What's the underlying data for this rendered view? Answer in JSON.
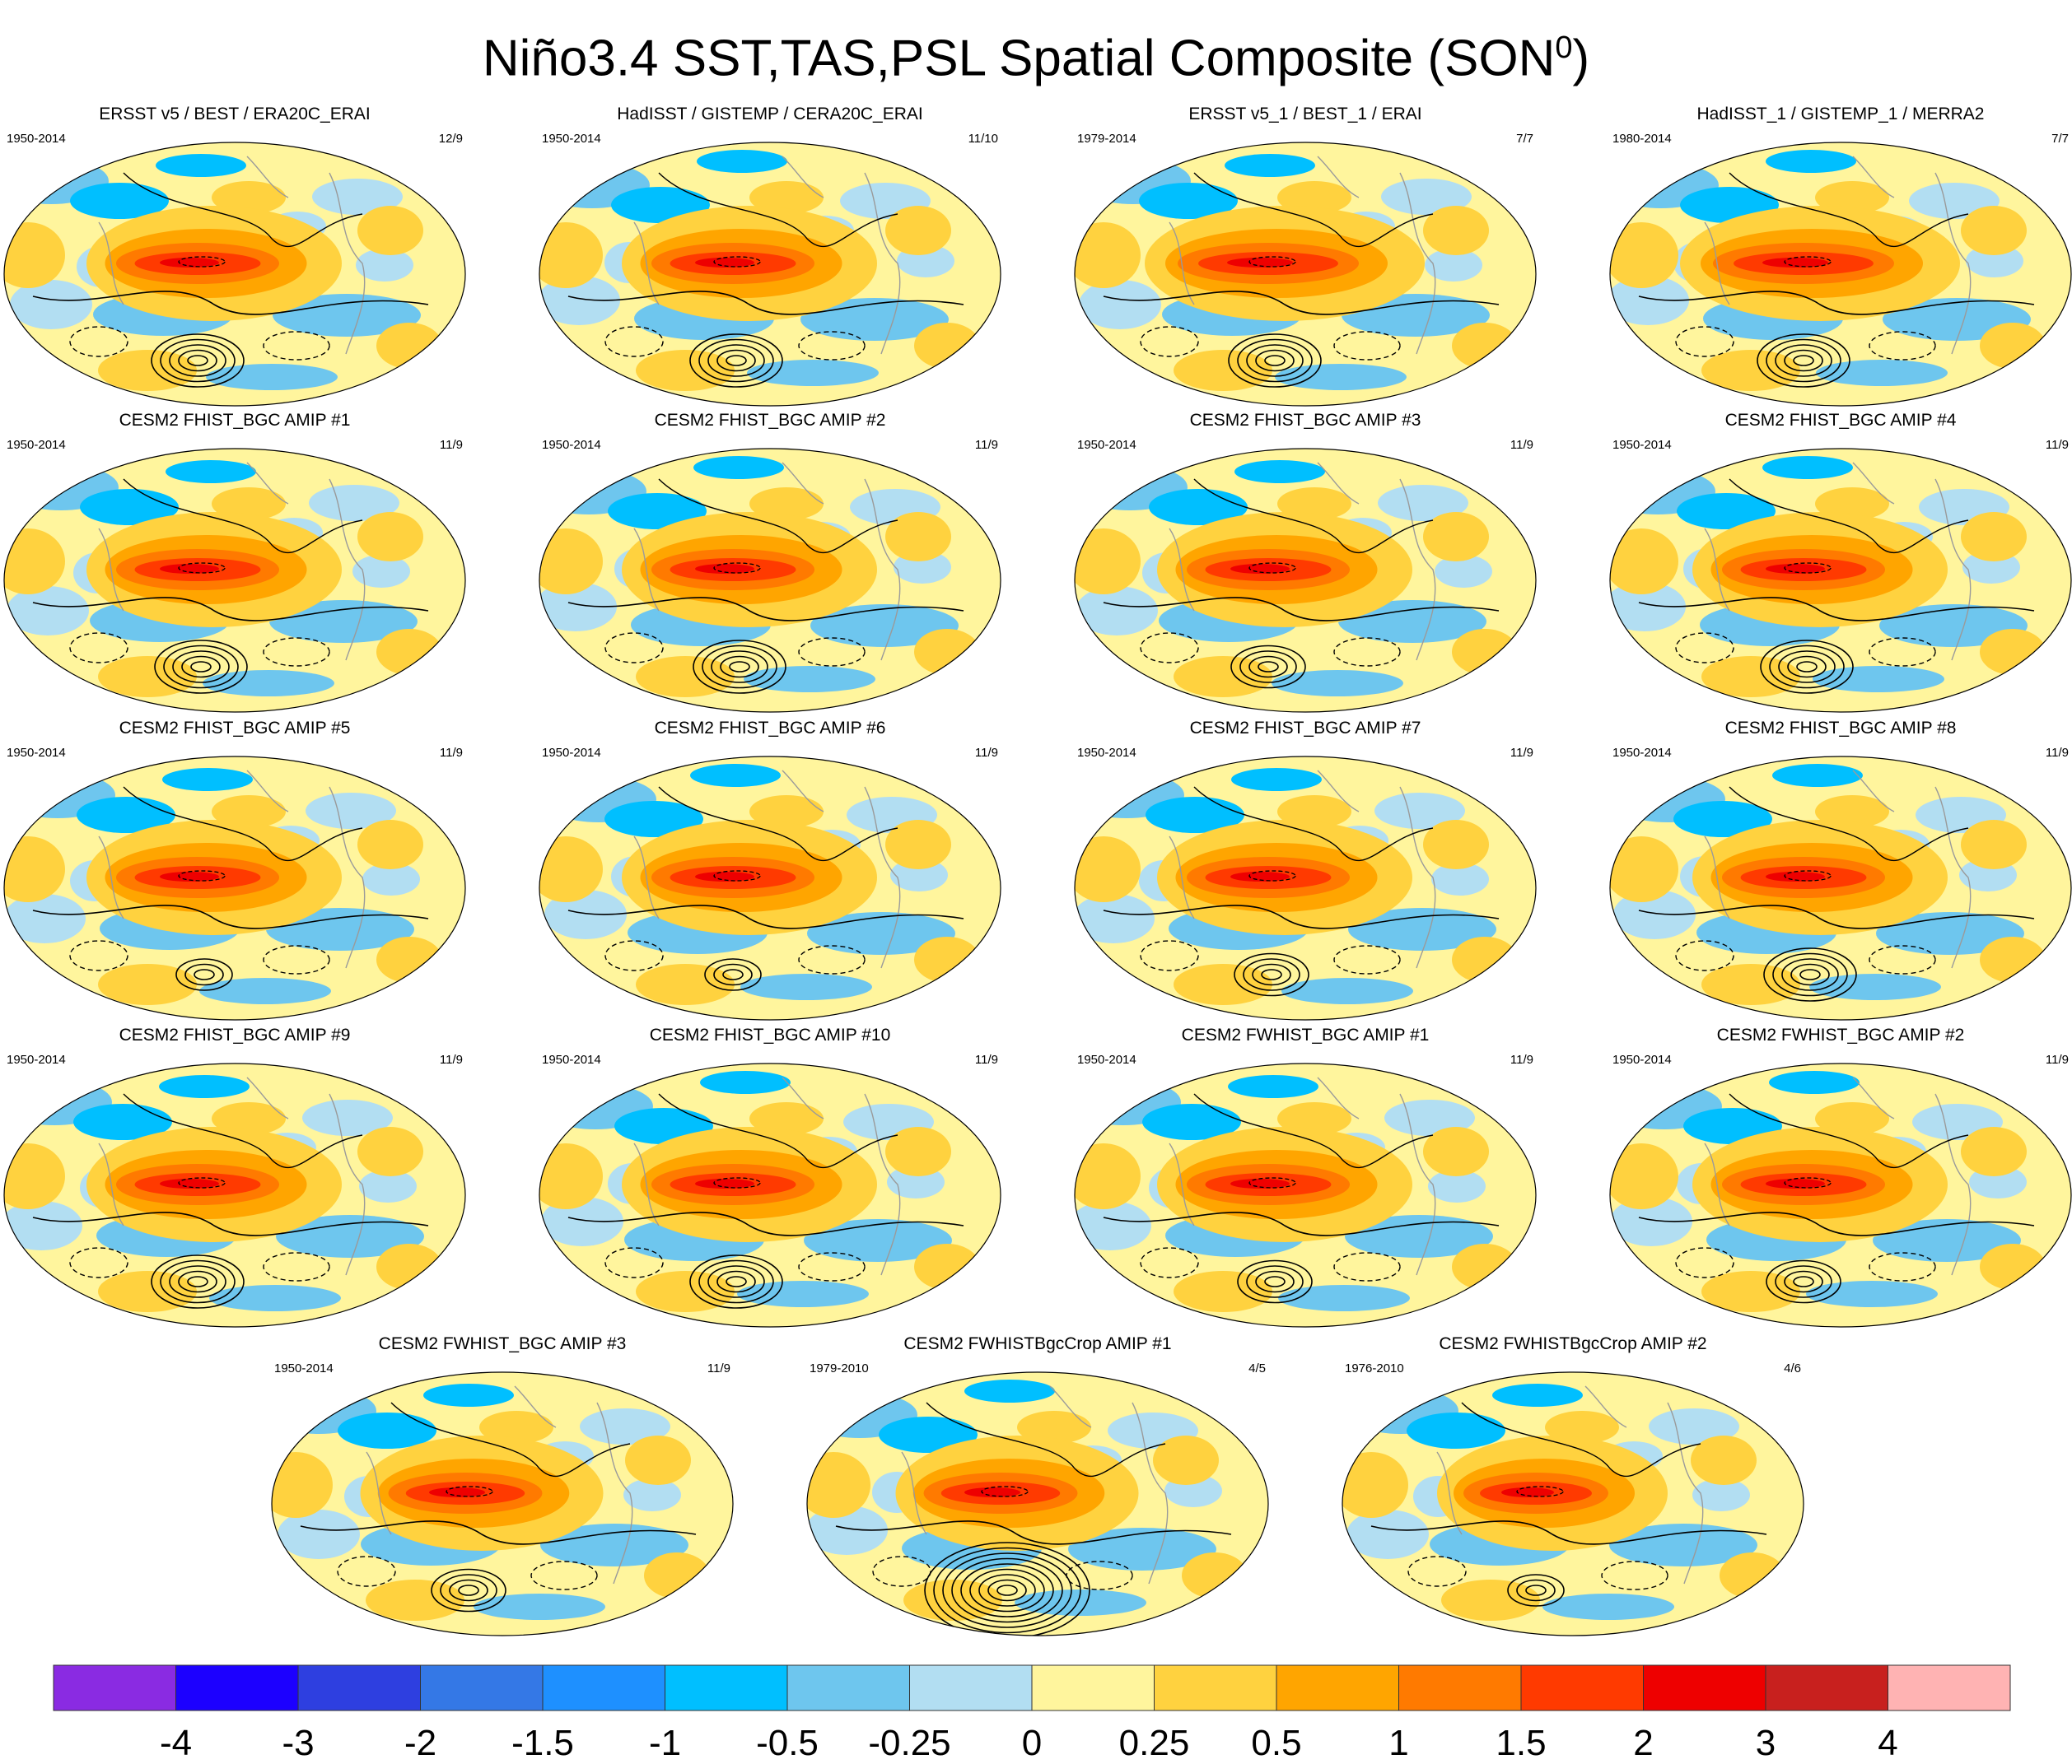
{
  "figure": {
    "title_main": "Niño3.4 SST,TAS,PSL Spatial Composite (SON",
    "title_sup": "0",
    "title_close": ")"
  },
  "chart_data": {
    "type": "heatmap",
    "description_kind": "global map composite panels",
    "colorbar": {
      "colors": [
        "#8a2be2",
        "#1c00ff",
        "#2e3fe0",
        "#3478e6",
        "#1e90ff",
        "#00bfff",
        "#6ec6ee",
        "#b2def2",
        "#fff59d",
        "#ffd23f",
        "#ffa500",
        "#ff7a00",
        "#ff3a00",
        "#ee0000",
        "#c8201e",
        "#ffb3b3"
      ],
      "labels": [
        "-4",
        "-3",
        "-2",
        "-1.5",
        "-1",
        "-0.5",
        "-0.25",
        "0",
        "0.25",
        "0.5",
        "1",
        "1.5",
        "2",
        "3",
        "4"
      ]
    },
    "panels": [
      {
        "title": "ERSST v5 / BEST / ERA20C_ERAI",
        "years": "1950-2014",
        "count": "12/9",
        "nino_strength": 0.9,
        "psl_rings": 5
      },
      {
        "title": "HadISST / GISTEMP / CERA20C_ERAI",
        "years": "1950-2014",
        "count": "11/10",
        "nino_strength": 0.9,
        "psl_rings": 5
      },
      {
        "title": "ERSST v5_1 / BEST_1 / ERAI",
        "years": "1979-2014",
        "count": "7/7",
        "nino_strength": 1.0,
        "psl_rings": 5
      },
      {
        "title": "HadISST_1 / GISTEMP_1 / MERRA2",
        "years": "1980-2014",
        "count": "7/7",
        "nino_strength": 1.0,
        "psl_rings": 5
      },
      {
        "title": "CESM2 FHIST_BGC AMIP #1",
        "years": "1950-2014",
        "count": "11/9",
        "nino_strength": 0.9,
        "psl_rings": 5
      },
      {
        "title": "CESM2 FHIST_BGC AMIP #2",
        "years": "1950-2014",
        "count": "11/9",
        "nino_strength": 0.9,
        "psl_rings": 5
      },
      {
        "title": "CESM2 FHIST_BGC AMIP #3",
        "years": "1950-2014",
        "count": "11/9",
        "nino_strength": 0.9,
        "psl_rings": 4
      },
      {
        "title": "CESM2 FHIST_BGC AMIP #4",
        "years": "1950-2014",
        "count": "11/9",
        "nino_strength": 0.9,
        "psl_rings": 5
      },
      {
        "title": "CESM2 FHIST_BGC AMIP #5",
        "years": "1950-2014",
        "count": "11/9",
        "nino_strength": 0.9,
        "psl_rings": 3
      },
      {
        "title": "CESM2 FHIST_BGC AMIP #6",
        "years": "1950-2014",
        "count": "11/9",
        "nino_strength": 0.9,
        "psl_rings": 3
      },
      {
        "title": "CESM2 FHIST_BGC AMIP #7",
        "years": "1950-2014",
        "count": "11/9",
        "nino_strength": 0.9,
        "psl_rings": 4
      },
      {
        "title": "CESM2 FHIST_BGC AMIP #8",
        "years": "1950-2014",
        "count": "11/9",
        "nino_strength": 0.9,
        "psl_rings": 5
      },
      {
        "title": "CESM2 FHIST_BGC AMIP #9",
        "years": "1950-2014",
        "count": "11/9",
        "nino_strength": 0.9,
        "psl_rings": 5
      },
      {
        "title": "CESM2 FHIST_BGC AMIP #10",
        "years": "1950-2014",
        "count": "11/9",
        "nino_strength": 0.9,
        "psl_rings": 5
      },
      {
        "title": "CESM2 FWHIST_BGC AMIP #1",
        "years": "1950-2014",
        "count": "11/9",
        "nino_strength": 0.9,
        "psl_rings": 4
      },
      {
        "title": "CESM2 FWHIST_BGC AMIP #2",
        "years": "1950-2014",
        "count": "11/9",
        "nino_strength": 0.9,
        "psl_rings": 4
      },
      {
        "title": "CESM2 FWHIST_BGC AMIP #3",
        "years": "1950-2014",
        "count": "11/9",
        "nino_strength": 0.85,
        "psl_rings": 4
      },
      {
        "title": "CESM2 FWHISTBgcCrop AMIP #1",
        "years": "1979-2010",
        "count": "4/5",
        "nino_strength": 0.85,
        "psl_rings": 9
      },
      {
        "title": "CESM2 FWHISTBgcCrop AMIP #2",
        "years": "1976-2010",
        "count": "4/6",
        "nino_strength": 0.8,
        "psl_rings": 3
      }
    ]
  }
}
